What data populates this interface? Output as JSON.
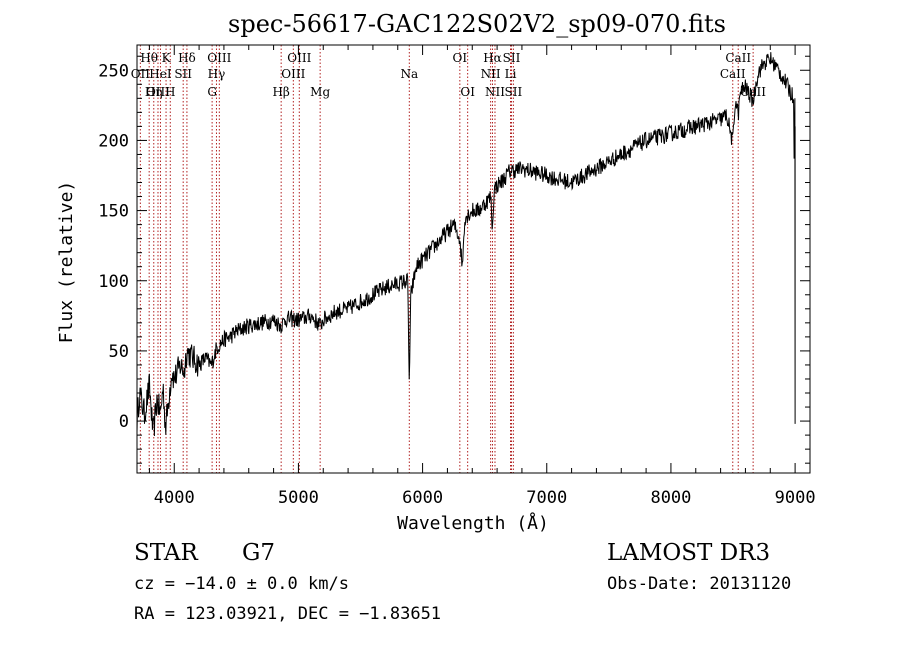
{
  "chart_data": {
    "type": "line",
    "title": "spec-56617-GAC122S02V2_sp09-070.fits",
    "xlabel": "Wavelength (Å)",
    "ylabel": "Flux (relative)",
    "xlim": [
      3700,
      9120
    ],
    "ylim": [
      -37,
      268
    ],
    "xticks": [
      4000,
      5000,
      6000,
      7000,
      8000,
      9000
    ],
    "yticks": [
      0,
      50,
      100,
      150,
      200,
      250
    ],
    "spectrum_anchors": [
      [
        3700,
        0
      ],
      [
        3720,
        20
      ],
      [
        3760,
        5
      ],
      [
        3800,
        25
      ],
      [
        3830,
        -10
      ],
      [
        3860,
        15
      ],
      [
        3890,
        5
      ],
      [
        3910,
        25
      ],
      [
        3930,
        -5
      ],
      [
        3960,
        20
      ],
      [
        3980,
        35
      ],
      [
        4000,
        30
      ],
      [
        4050,
        40
      ],
      [
        4080,
        35
      ],
      [
        4100,
        50
      ],
      [
        4150,
        45
      ],
      [
        4200,
        40
      ],
      [
        4250,
        45
      ],
      [
        4300,
        40
      ],
      [
        4340,
        52
      ],
      [
        4400,
        58
      ],
      [
        4450,
        60
      ],
      [
        4500,
        64
      ],
      [
        4600,
        68
      ],
      [
        4700,
        70
      ],
      [
        4800,
        72
      ],
      [
        4861,
        68
      ],
      [
        4900,
        73
      ],
      [
        5000,
        72
      ],
      [
        5100,
        75
      ],
      [
        5175,
        68
      ],
      [
        5200,
        72
      ],
      [
        5300,
        78
      ],
      [
        5400,
        80
      ],
      [
        5500,
        85
      ],
      [
        5600,
        90
      ],
      [
        5700,
        95
      ],
      [
        5800,
        98
      ],
      [
        5880,
        100
      ],
      [
        5893,
        25
      ],
      [
        5905,
        90
      ],
      [
        5950,
        110
      ],
      [
        6000,
        115
      ],
      [
        6100,
        125
      ],
      [
        6200,
        135
      ],
      [
        6250,
        140
      ],
      [
        6300,
        130
      ],
      [
        6320,
        110
      ],
      [
        6340,
        145
      ],
      [
        6400,
        150
      ],
      [
        6450,
        150
      ],
      [
        6500,
        155
      ],
      [
        6550,
        160
      ],
      [
        6563,
        135
      ],
      [
        6575,
        165
      ],
      [
        6600,
        168
      ],
      [
        6650,
        172
      ],
      [
        6700,
        178
      ],
      [
        6800,
        180
      ],
      [
        7000,
        175
      ],
      [
        7100,
        172
      ],
      [
        7200,
        170
      ],
      [
        7300,
        175
      ],
      [
        7400,
        180
      ],
      [
        7500,
        185
      ],
      [
        7600,
        190
      ],
      [
        7700,
        195
      ],
      [
        7800,
        200
      ],
      [
        8000,
        205
      ],
      [
        8200,
        210
      ],
      [
        8400,
        215
      ],
      [
        8450,
        218
      ],
      [
        8498,
        198
      ],
      [
        8520,
        230
      ],
      [
        8542,
        218
      ],
      [
        8560,
        235
      ],
      [
        8600,
        238
      ],
      [
        8662,
        228
      ],
      [
        8700,
        248
      ],
      [
        8750,
        255
      ],
      [
        8800,
        258
      ],
      [
        8850,
        252
      ],
      [
        8900,
        245
      ],
      [
        8960,
        235
      ],
      [
        8990,
        230
      ],
      [
        9000,
        45
      ]
    ],
    "lines": [
      {
        "label": "Hθ",
        "wl": 3798,
        "row": 1
      },
      {
        "label": "OII",
        "wl": 3727,
        "row": 2
      },
      {
        "label": "OIII",
        "wl": 3869,
        "row": 3
      },
      {
        "label": "Hη",
        "wl": 3835,
        "row": 3
      },
      {
        "label": "K",
        "wl": 3934,
        "row": 1
      },
      {
        "label": "HeI",
        "wl": 3889,
        "row": 2
      },
      {
        "label": "SII",
        "wl": 4072,
        "row": 2
      },
      {
        "label": "H",
        "wl": 3968,
        "row": 3
      },
      {
        "label": "Hδ",
        "wl": 4102,
        "row": 1
      },
      {
        "label": "OIII",
        "wl": 4363,
        "row": 1
      },
      {
        "label": "Hγ",
        "wl": 4340,
        "row": 2
      },
      {
        "label": "G",
        "wl": 4305,
        "row": 3
      },
      {
        "label": "Hβ",
        "wl": 4861,
        "row": 3
      },
      {
        "label": "OIII",
        "wl": 5007,
        "row": 1
      },
      {
        "label": "OIII",
        "wl": 4959,
        "row": 2
      },
      {
        "label": "Mg",
        "wl": 5175,
        "row": 3
      },
      {
        "label": "Na",
        "wl": 5893,
        "row": 2
      },
      {
        "label": "OI",
        "wl": 6300,
        "row": 1
      },
      {
        "label": "OI",
        "wl": 6363,
        "row": 3
      },
      {
        "label": "Hα",
        "wl": 6563,
        "row": 1
      },
      {
        "label": "NII",
        "wl": 6548,
        "row": 2
      },
      {
        "label": "NII",
        "wl": 6583,
        "row": 3
      },
      {
        "label": "SII",
        "wl": 6716,
        "row": 1
      },
      {
        "label": "Li",
        "wl": 6708,
        "row": 2
      },
      {
        "label": "SII",
        "wl": 6731,
        "row": 3
      },
      {
        "label": "CaII",
        "wl": 8542,
        "row": 1
      },
      {
        "label": "CaII",
        "wl": 8498,
        "row": 2
      },
      {
        "label": "CaII",
        "wl": 8662,
        "row": 3
      }
    ]
  },
  "info": {
    "class_label": "STAR",
    "subclass": "G7",
    "survey": "LAMOST DR3",
    "cz": "cz = −14.0 ± 0.0 km/s",
    "obs_date": "Obs-Date: 20131120",
    "coords": "RA = 123.03921, DEC =  −1.83651"
  },
  "colors": {
    "spectrum": "#000000",
    "line_markers": "#b22222",
    "axes": "#000000"
  }
}
